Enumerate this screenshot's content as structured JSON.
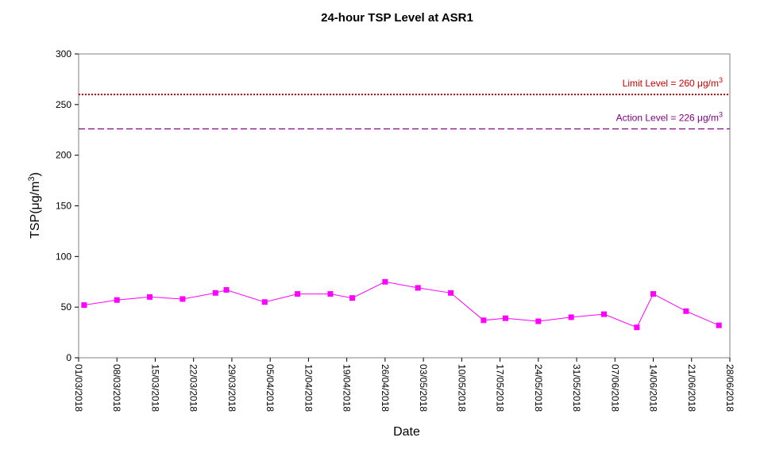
{
  "chart_data": {
    "type": "line",
    "title": "24-hour TSP Level at ASR1",
    "xlabel": "Date",
    "ylabel_prefix": "TSP(",
    "ylabel_unit": "μg/m",
    "ylabel_sup": "3",
    "ylabel_suffix": ")",
    "ylim": [
      0,
      300
    ],
    "yticks": [
      0,
      50,
      100,
      150,
      200,
      250,
      300
    ],
    "xlim": [
      "01/03/2018",
      "28/06/2018"
    ],
    "xticks": [
      "01/03/2018",
      "08/03/2018",
      "15/03/2018",
      "22/03/2018",
      "29/03/2018",
      "05/04/2018",
      "12/04/2018",
      "19/04/2018",
      "26/04/2018",
      "03/05/2018",
      "10/05/2018",
      "17/05/2018",
      "24/05/2018",
      "31/05/2018",
      "07/06/2018",
      "14/06/2018",
      "21/06/2018",
      "28/06/2018"
    ],
    "grid": false,
    "series": [
      {
        "color": "#ff00ff",
        "marker": "square",
        "points": [
          {
            "x": "02/03/2018",
            "y": 52
          },
          {
            "x": "08/03/2018",
            "y": 57
          },
          {
            "x": "14/03/2018",
            "y": 60
          },
          {
            "x": "20/03/2018",
            "y": 58
          },
          {
            "x": "26/03/2018",
            "y": 64
          },
          {
            "x": "28/03/2018",
            "y": 67
          },
          {
            "x": "04/04/2018",
            "y": 55
          },
          {
            "x": "10/04/2018",
            "y": 63
          },
          {
            "x": "16/04/2018",
            "y": 63
          },
          {
            "x": "20/04/2018",
            "y": 59
          },
          {
            "x": "26/04/2018",
            "y": 75
          },
          {
            "x": "02/05/2018",
            "y": 69
          },
          {
            "x": "08/05/2018",
            "y": 64
          },
          {
            "x": "14/05/2018",
            "y": 37
          },
          {
            "x": "18/05/2018",
            "y": 39
          },
          {
            "x": "24/05/2018",
            "y": 36
          },
          {
            "x": "30/05/2018",
            "y": 40
          },
          {
            "x": "05/06/2018",
            "y": 43
          },
          {
            "x": "11/06/2018",
            "y": 30
          },
          {
            "x": "14/06/2018",
            "y": 63
          },
          {
            "x": "20/06/2018",
            "y": 46
          },
          {
            "x": "26/06/2018",
            "y": 32
          }
        ]
      }
    ],
    "reference_lines": [
      {
        "name": "limit",
        "value": 260,
        "label": "Limit Level  = 260 μg/m",
        "sup": "3",
        "color": "#cc0000",
        "style": "dotted"
      },
      {
        "name": "action",
        "value": 226,
        "label": "Action Level  = 226 μg/m",
        "sup": "3",
        "color": "#800080",
        "style": "dashed"
      }
    ]
  }
}
